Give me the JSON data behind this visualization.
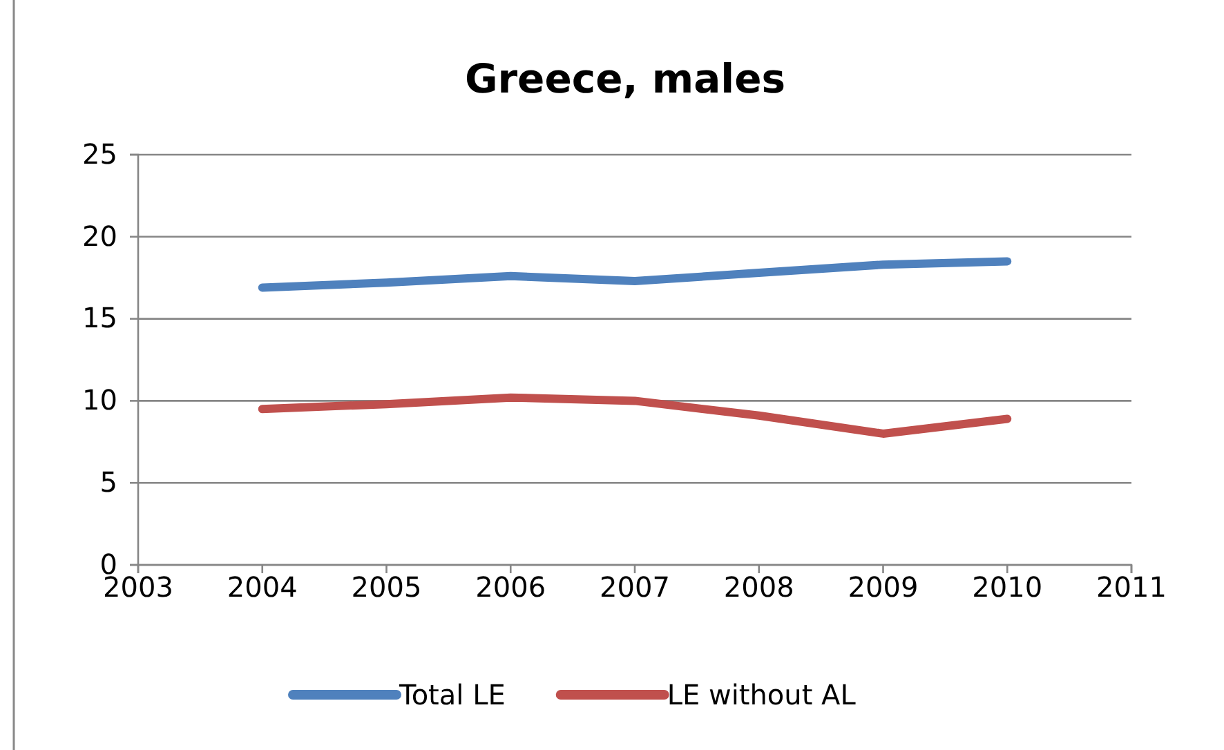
{
  "chart_data": {
    "type": "line",
    "title": "Greece, males",
    "x": [
      2004,
      2005,
      2006,
      2007,
      2008,
      2009,
      2010
    ],
    "series": [
      {
        "name": "Total LE",
        "color": "#4f81bd",
        "values": [
          16.9,
          17.2,
          17.6,
          17.3,
          17.8,
          18.3,
          18.5
        ]
      },
      {
        "name": "LE without AL",
        "color": "#c0504d",
        "values": [
          9.5,
          9.8,
          10.2,
          10.0,
          9.1,
          8.0,
          8.9
        ]
      }
    ],
    "xlim": [
      2003,
      2011
    ],
    "xticks": [
      2003,
      2004,
      2005,
      2006,
      2007,
      2008,
      2009,
      2010,
      2011
    ],
    "ylim": [
      0,
      25
    ],
    "yticks": [
      0,
      5,
      10,
      15,
      20,
      25
    ],
    "grid": "y",
    "legend": "bottom",
    "marker": "none",
    "line_style": "solid"
  }
}
